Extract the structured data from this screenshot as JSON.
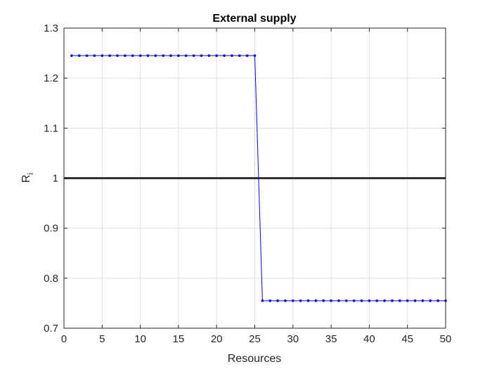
{
  "chart_data": {
    "type": "line",
    "title": "External supply",
    "xlabel": "Resources",
    "ylabel": "R",
    "ylabel_subscript": "i",
    "xlim": [
      0,
      50
    ],
    "ylim": [
      0.7,
      1.3
    ],
    "xticks": [
      0,
      5,
      10,
      15,
      20,
      25,
      30,
      35,
      40,
      45,
      50
    ],
    "yticks": [
      0.7,
      0.8,
      0.9,
      1.0,
      1.1,
      1.2,
      1.3
    ],
    "ytick_labels": [
      "0.7",
      "0.8",
      "0.9",
      "1",
      "1.1",
      "1.2",
      "1.3"
    ],
    "grid": true,
    "reference_line": {
      "y": 1.0,
      "color": "#333333"
    },
    "series": [
      {
        "color": "#0000ff",
        "marker": "dot",
        "x": [
          1,
          2,
          3,
          4,
          5,
          6,
          7,
          8,
          9,
          10,
          11,
          12,
          13,
          14,
          15,
          16,
          17,
          18,
          19,
          20,
          21,
          22,
          23,
          24,
          25,
          26,
          27,
          28,
          29,
          30,
          31,
          32,
          33,
          34,
          35,
          36,
          37,
          38,
          39,
          40,
          41,
          42,
          43,
          44,
          45,
          46,
          47,
          48,
          49,
          50
        ],
        "y": [
          1.245,
          1.245,
          1.245,
          1.245,
          1.245,
          1.245,
          1.245,
          1.245,
          1.245,
          1.245,
          1.245,
          1.245,
          1.245,
          1.245,
          1.245,
          1.245,
          1.245,
          1.245,
          1.245,
          1.245,
          1.245,
          1.245,
          1.245,
          1.245,
          1.245,
          0.755,
          0.755,
          0.755,
          0.755,
          0.755,
          0.755,
          0.755,
          0.755,
          0.755,
          0.755,
          0.755,
          0.755,
          0.755,
          0.755,
          0.755,
          0.755,
          0.755,
          0.755,
          0.755,
          0.755,
          0.755,
          0.755,
          0.755,
          0.755,
          0.755
        ]
      }
    ]
  }
}
